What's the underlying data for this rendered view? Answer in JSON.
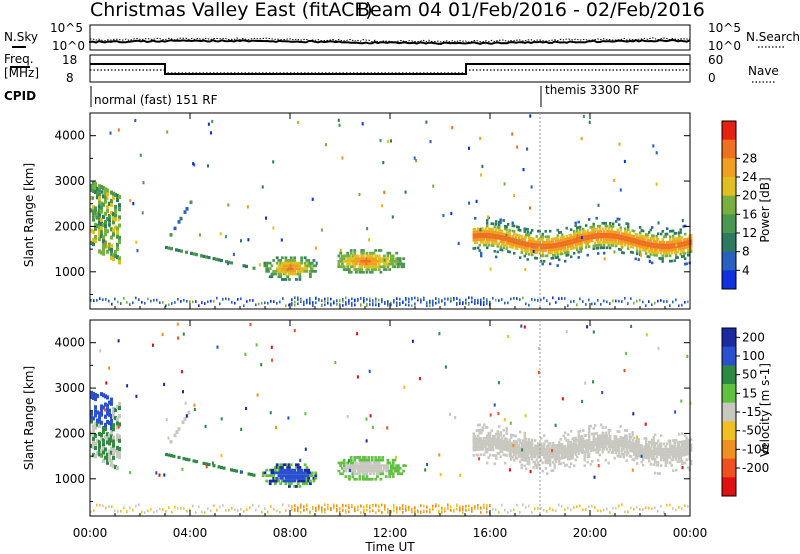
{
  "header": {
    "station": "Christmas Valley East (fitACF)",
    "beam": "Beam 04",
    "date_range": "01/Feb/2016 - 02/Feb/2016"
  },
  "panels": {
    "nsky": {
      "label": "N.Sky",
      "tick_top": "10^5",
      "tick_bottom": "10^0",
      "right_tick_top": "10^5",
      "right_tick_bottom": "10^0",
      "right_label": "N.Search"
    },
    "freq": {
      "label_line1": "Freq.",
      "label_line2": "[MHz]",
      "tick_top": "18",
      "tick_bottom": "8",
      "right_tick_top": "60",
      "right_tick_bottom": "0",
      "right_label": "Nave"
    },
    "cpid": {
      "label": "CPID",
      "mode1": "normal (fast) 151 RF",
      "mode2": "themis 3300 RF"
    }
  },
  "chart_data": [
    {
      "type": "heatmap",
      "title": "",
      "ylabel": "Slant Range [km]",
      "xlabel": "Time UT",
      "ylim": [
        180,
        4500
      ],
      "y_ticks": [
        "1000",
        "2000",
        "3000",
        "4000"
      ],
      "x_ticks": [
        "00:00",
        "04:00",
        "08:00",
        "12:00",
        "16:00",
        "20:00",
        "00:00"
      ],
      "colorbar": {
        "label": "Power [dB]",
        "ticks": [
          "4",
          "8",
          "12",
          "16",
          "20",
          "24",
          "28"
        ],
        "colors": [
          "#1030e0",
          "#2860c0",
          "#2e7a60",
          "#4a9850",
          "#78b040",
          "#e0c020",
          "#f0a020",
          "#f07020",
          "#e82010"
        ]
      }
    },
    {
      "type": "heatmap",
      "title": "",
      "ylabel": "Slant Range [km]",
      "xlabel": "Time UT",
      "ylim": [
        180,
        4500
      ],
      "y_ticks": [
        "1000",
        "2000",
        "3000",
        "4000"
      ],
      "x_ticks": [
        "00:00",
        "04:00",
        "08:00",
        "12:00",
        "16:00",
        "20:00",
        "00:00"
      ],
      "colorbar": {
        "label": "Velocity [m s-1]",
        "ticks": [
          "200",
          "100",
          "50",
          "15",
          "-15",
          "-50",
          "-100",
          "-200"
        ],
        "colors": [
          "#1a2aa0",
          "#2a50d0",
          "#2e8a40",
          "#60c040",
          "#c8c8c0",
          "#f0c020",
          "#f09020",
          "#f05020",
          "#e01010"
        ]
      }
    }
  ],
  "axes": {
    "xlabel": "Time UT"
  }
}
